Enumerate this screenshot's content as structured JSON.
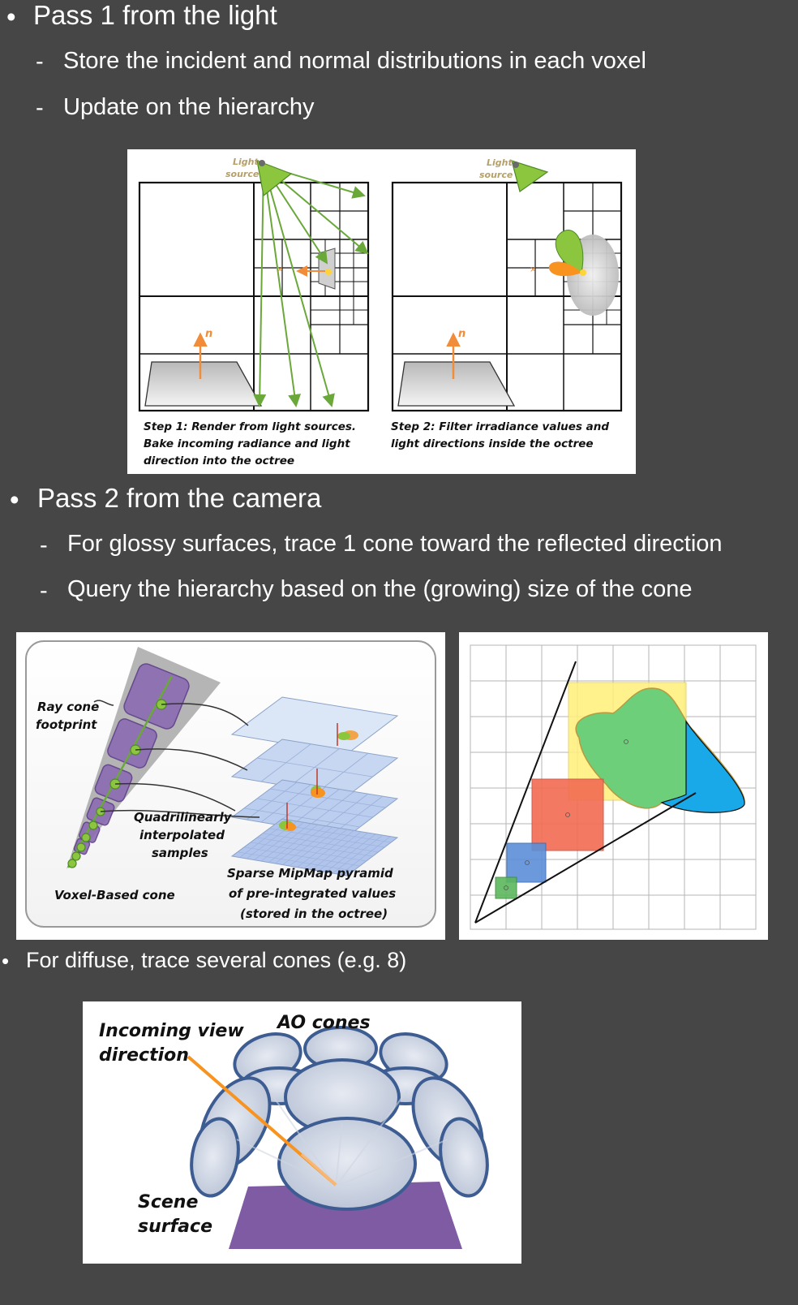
{
  "slide": {
    "bullet1": {
      "marker": "•",
      "text": "Pass 1 from the light"
    },
    "bullet1_sub1": {
      "marker": "-",
      "text": "Store the incident and normal distributions in each voxel"
    },
    "bullet1_sub2": {
      "marker": "-",
      "text": "Update on the hierarchy"
    },
    "bullet2": {
      "marker": "•",
      "text": "Pass 2 from the camera"
    },
    "bullet2_sub1": {
      "marker": "-",
      "text": "For glossy surfaces, trace 1 cone toward the reflected direction"
    },
    "bullet2_sub2": {
      "marker": "-",
      "text": "Query the hierarchy based on the (growing) size of the cone"
    },
    "bullet3": {
      "marker": "•",
      "text": "For diffuse, trace several cones (e.g. 8)"
    }
  },
  "figure_octree": {
    "light_label_1": [
      "Light",
      "source"
    ],
    "light_label_2": [
      "Light",
      "source"
    ],
    "normal_label": "n",
    "step1_caption": [
      "Step 1: Render from light sources.",
      "Bake incoming radiance and light",
      "direction into the octree"
    ],
    "step2_caption": [
      "Step 2: Filter irradiance values and",
      "light directions inside the octree"
    ]
  },
  "figure_cone": {
    "ray_cone_label": [
      "Ray cone",
      "footprint"
    ],
    "samples_label": [
      "Quadrilinearly",
      "interpolated",
      "samples"
    ],
    "voxel_cone_label": "Voxel-Based cone",
    "pyramid_label": [
      "Sparse MipMap pyramid",
      "of pre-integrated values",
      "(stored in the octree)"
    ]
  },
  "figure_ao": {
    "view_label": [
      "Incoming view",
      "direction"
    ],
    "ao_label": "AO cones",
    "surface_label": [
      "Scene",
      "surface"
    ]
  },
  "colors": {
    "background": "#464646",
    "text": "#ffffff",
    "light_green": "#8cc63f",
    "orange": "#f7931e",
    "cone_purple": "#8b6bb1",
    "ao_blue": "#4a6a9a",
    "surface_purple": "#7e5ba3"
  }
}
